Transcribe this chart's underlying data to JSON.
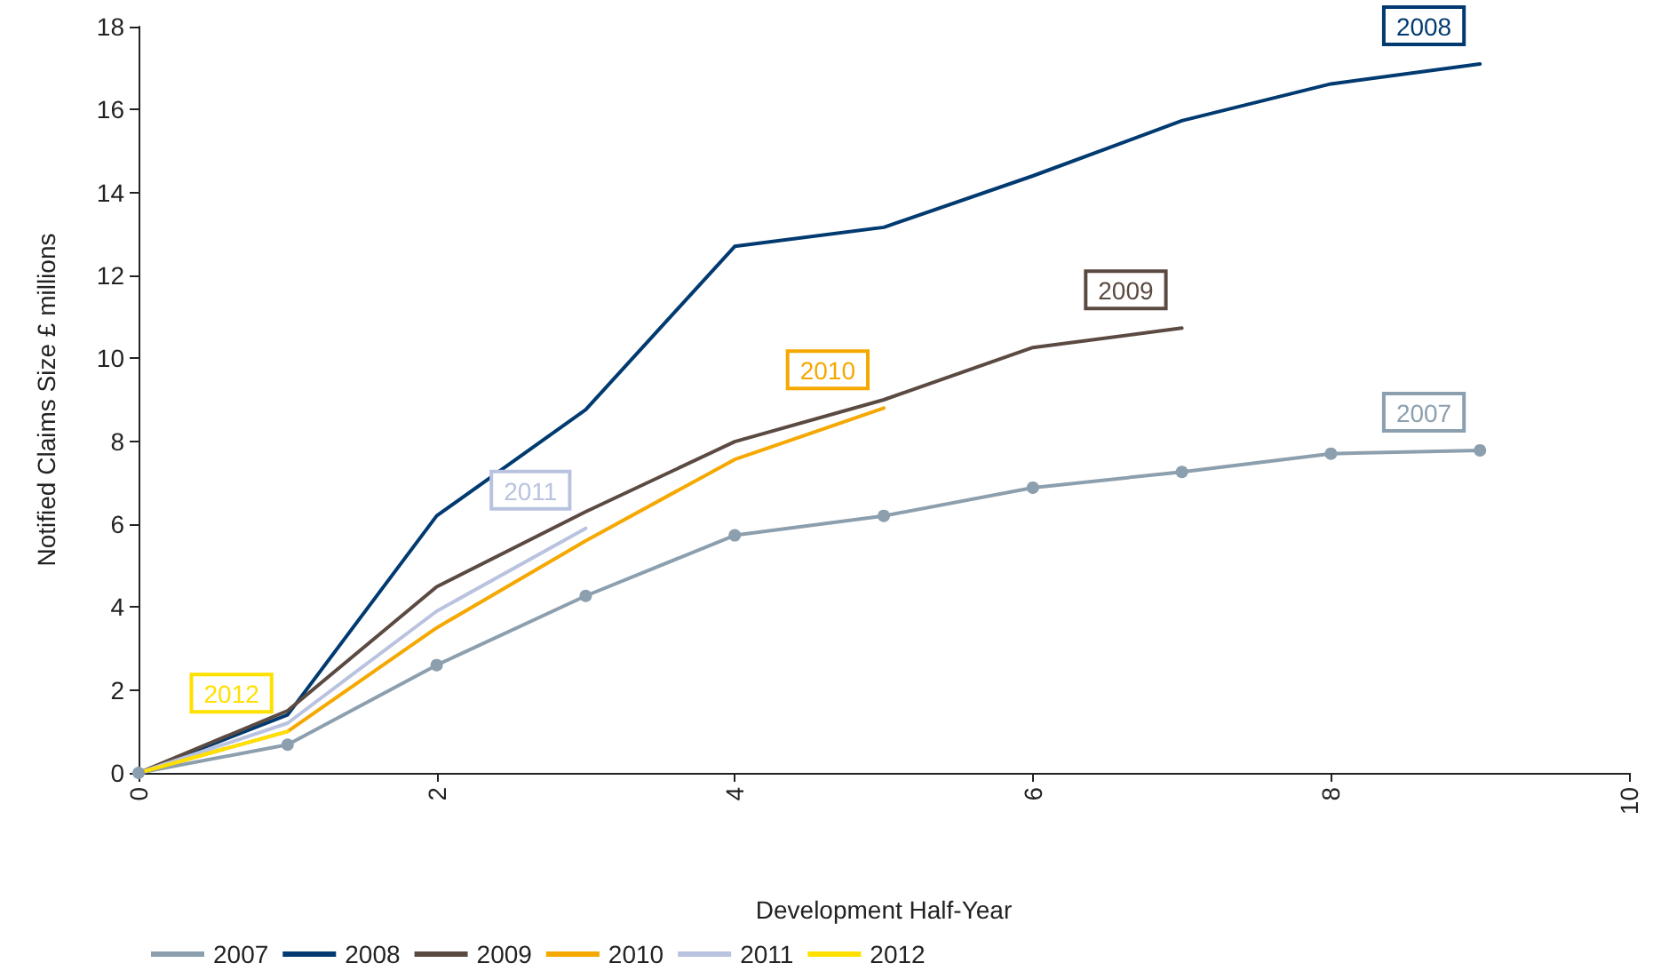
{
  "chart_data": {
    "type": "line",
    "xlabel": "Development Half-Year",
    "ylabel": "Notified Claims Size £ millions",
    "xlim": [
      0,
      10
    ],
    "xticks": [
      0,
      2,
      4,
      6,
      8,
      10
    ],
    "ylim": [
      0,
      18
    ],
    "yticks": [
      0,
      2,
      4,
      6,
      8,
      10,
      12,
      14,
      16,
      18
    ],
    "grid": false,
    "legend": "bottom",
    "line_style": "solid",
    "series": [
      {
        "name": "2007",
        "color": "#8c9fae",
        "marker": "circle",
        "x": [
          0,
          1,
          2,
          3,
          4,
          5,
          6,
          7,
          8,
          9
        ],
        "values": [
          0,
          0.68,
          2.6,
          4.27,
          5.73,
          6.2,
          6.88,
          7.26,
          7.7,
          7.78
        ]
      },
      {
        "name": "2008",
        "color": "#003a70",
        "marker": "none",
        "x": [
          0,
          1,
          2,
          3,
          4,
          5,
          6,
          7,
          8,
          9
        ],
        "values": [
          0,
          1.4,
          6.2,
          8.76,
          12.7,
          13.16,
          14.4,
          15.73,
          16.62,
          17.1
        ]
      },
      {
        "name": "2009",
        "color": "#5b4a42",
        "marker": "none",
        "x": [
          0,
          1,
          2,
          3,
          4,
          5,
          6,
          7
        ],
        "values": [
          0,
          1.5,
          4.49,
          6.3,
          7.99,
          9.0,
          10.26,
          10.73
        ]
      },
      {
        "name": "2010",
        "color": "#f5a800",
        "marker": "none",
        "x": [
          0,
          1,
          2,
          3,
          4,
          5
        ],
        "values": [
          0,
          1.0,
          3.5,
          5.6,
          7.56,
          8.8
        ]
      },
      {
        "name": "2011",
        "color": "#b9c3df",
        "marker": "none",
        "x": [
          0,
          1,
          2,
          3
        ],
        "values": [
          0,
          1.2,
          3.9,
          5.9
        ]
      },
      {
        "name": "2012",
        "color": "#ffe000",
        "marker": "none",
        "x": [
          0,
          1
        ],
        "values": [
          0,
          1.0
        ]
      }
    ]
  }
}
